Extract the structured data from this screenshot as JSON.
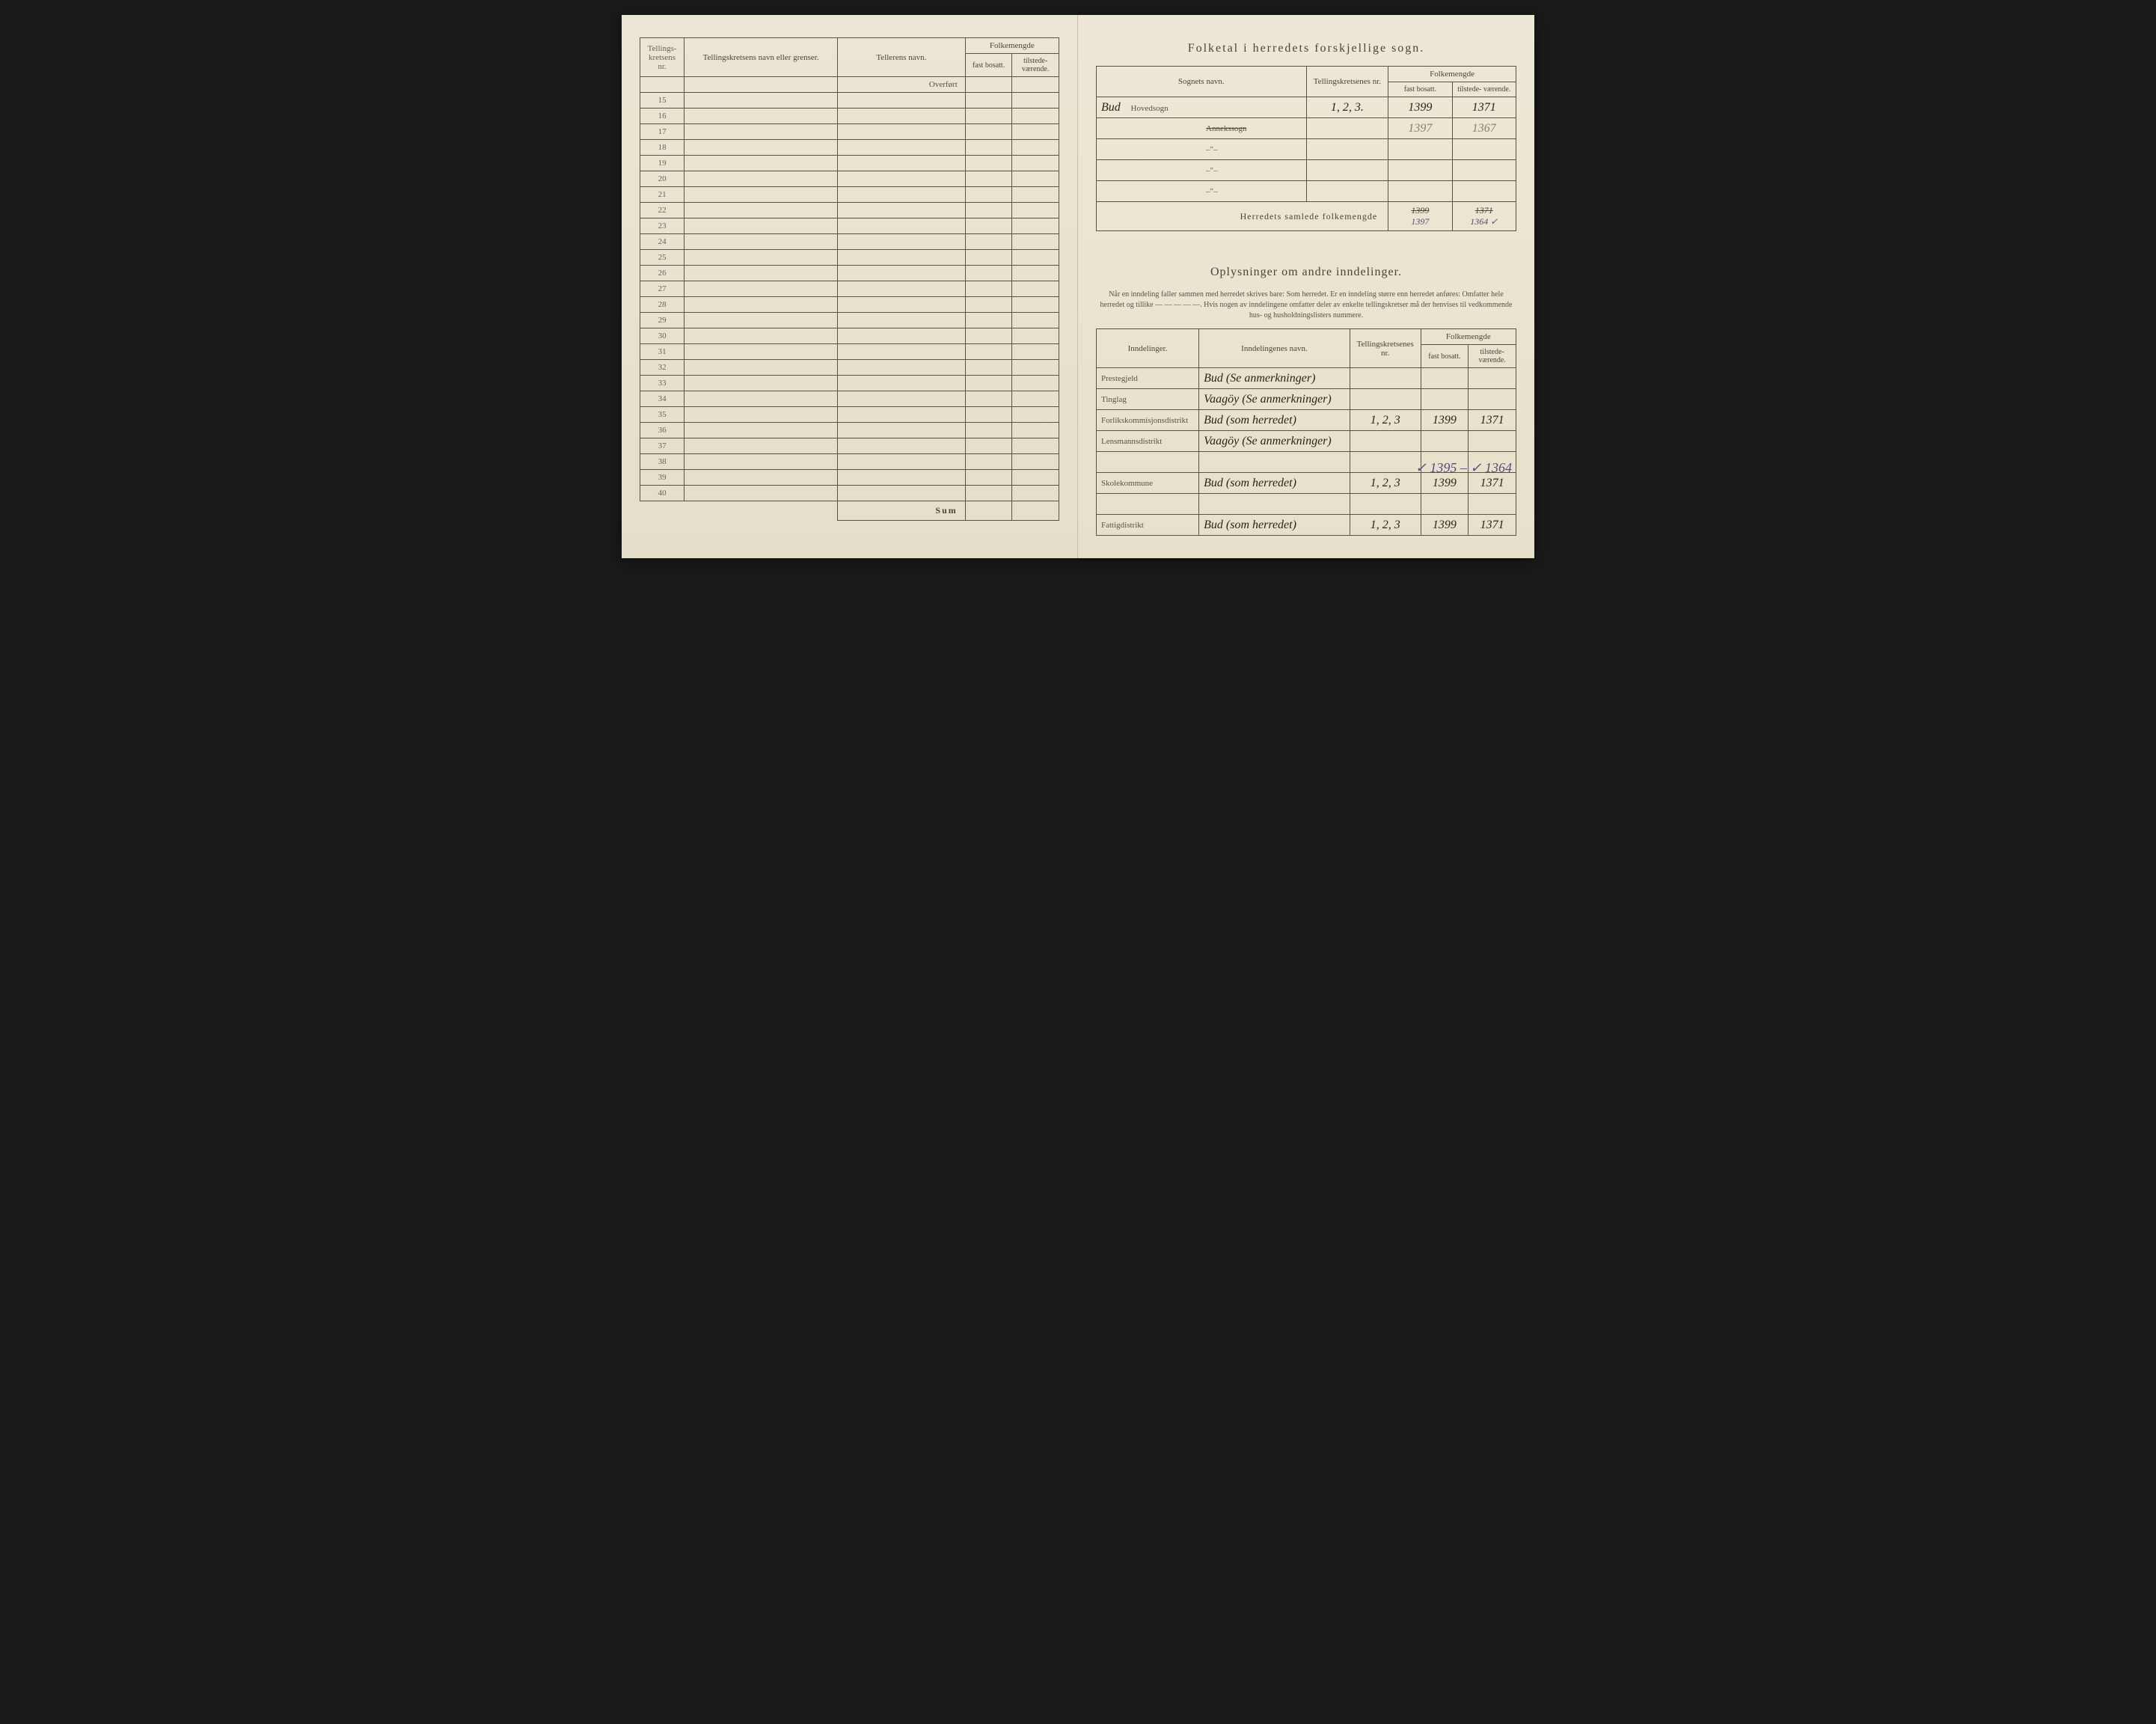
{
  "left": {
    "headers": {
      "col1": "Tellings-\nkretsens\nnr.",
      "col2": "Tellingskretsens navn eller grenser.",
      "col3": "Tellerens navn.",
      "col4_group": "Folkemengde",
      "col4a": "fast\nbosatt.",
      "col4b": "tilstede-\nværende."
    },
    "overfort": "Overført",
    "row_numbers": [
      "15",
      "16",
      "17",
      "18",
      "19",
      "20",
      "21",
      "22",
      "23",
      "24",
      "25",
      "26",
      "27",
      "28",
      "29",
      "30",
      "31",
      "32",
      "33",
      "34",
      "35",
      "36",
      "37",
      "38",
      "39",
      "40"
    ],
    "sum": "Sum"
  },
  "right": {
    "title1": "Folketal i herredets forskjellige sogn.",
    "table1": {
      "headers": {
        "sogn": "Sognets navn.",
        "krets": "Tellingskretsenes\nnr.",
        "folke": "Folkemengde",
        "fast": "fast\nbosatt.",
        "tilst": "tilstede-\nværende."
      },
      "rows": [
        {
          "sogn_hand": "Bud",
          "sogn_print": "Hovedsogn",
          "krets": "1, 2, 3.",
          "fast": "1399",
          "tilst": "1371"
        },
        {
          "sogn_hand": "",
          "sogn_print_strike": "Annekssogn",
          "krets": "",
          "fast": "1397",
          "tilst": "1367",
          "faded": true
        },
        {
          "sogn_hand": "",
          "sogn_print": "–\"–",
          "krets": "",
          "fast": "",
          "tilst": ""
        },
        {
          "sogn_hand": "",
          "sogn_print": "–\"–",
          "krets": "",
          "fast": "",
          "tilst": ""
        },
        {
          "sogn_hand": "",
          "sogn_print": "–\"–",
          "krets": "",
          "fast": "",
          "tilst": ""
        }
      ],
      "summary_label": "Herredets samlede folkemengde",
      "summary_fast_strike": "1399",
      "summary_fast2": "1397",
      "summary_tilst_strike": "1371",
      "summary_tilst2": "1364 ✓"
    },
    "title2": "Oplysninger om andre inndelinger.",
    "subtitle2": "Når en inndeling faller sammen med herredet skrives bare: Som herredet. Er en inndeling større enn herredet anføres: Omfatter hele herredet og tillike — — — — —. Hvis nogen av inndelingene omfatter deler av enkelte tellingskretser må der henvises til vedkommende hus- og husholdningslisters nummere.",
    "table2": {
      "headers": {
        "innd": "Inndelinger.",
        "navn": "Inndelingenes navn.",
        "krets": "Tellingskretsenes\nnr.",
        "folke": "Folkemengde",
        "fast": "fast\nbosatt.",
        "tilst": "tilstede-\nværende."
      },
      "rows": [
        {
          "label": "Prestegjeld",
          "navn": "Bud (Se anmerkninger)",
          "krets": "",
          "fast": "",
          "tilst": ""
        },
        {
          "label": "Tinglag",
          "navn": "Vaagöy (Se anmerkninger)",
          "krets": "",
          "fast": "",
          "tilst": ""
        },
        {
          "label": "Forlikskommisjonsdistrikt",
          "navn": "Bud (som herredet)",
          "krets": "1, 2, 3",
          "fast": "1399",
          "tilst": "1371"
        },
        {
          "label": "Lensmannsdistrikt",
          "navn": "Vaagöy (Se anmerkninger)",
          "krets": "",
          "fast": "",
          "tilst": ""
        },
        {
          "label": "",
          "navn": "",
          "krets": "",
          "fast": "",
          "tilst": ""
        },
        {
          "label": "Skolekommune",
          "navn": "Bud (som herredet)",
          "krets": "1, 2, 3",
          "fast": "1399",
          "tilst": "1371"
        },
        {
          "label": "",
          "navn": "",
          "krets": "",
          "fast": "",
          "tilst": ""
        },
        {
          "label": "Fattigdistrikt",
          "navn": "Bud (som herredet)",
          "krets": "1, 2, 3",
          "fast": "1399",
          "tilst": "1371"
        }
      ]
    },
    "annotation": "✓ 1395 – ✓ 1364"
  }
}
